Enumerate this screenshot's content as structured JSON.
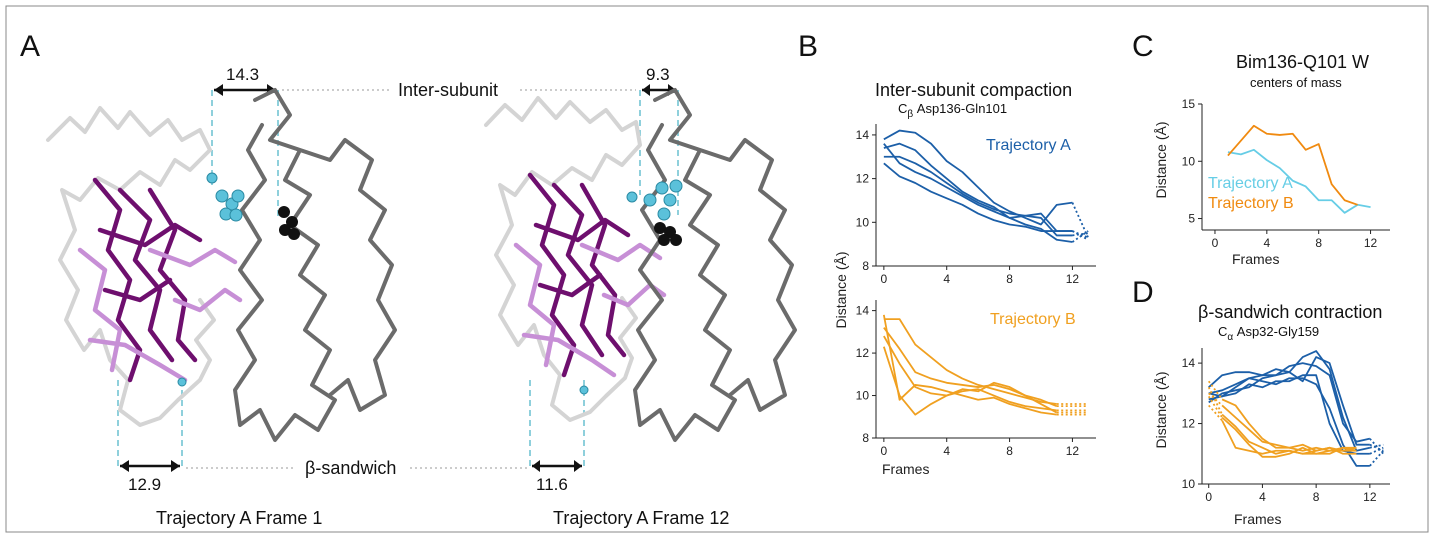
{
  "panels": {
    "a": {
      "letter": "A",
      "inter_label": "Inter-subunit",
      "sandwich_label": "β-sandwich",
      "frame1_caption": "Trajectory A Frame 1",
      "frame12_caption": "Trajectory A Frame 12",
      "frame1_inter": "14.3",
      "frame12_inter": "9.3",
      "frame1_sandwich": "12.9",
      "frame12_sandwich": "11.6",
      "colors": {
        "dark_purple": "#6e0f6e",
        "light_purple": "#c78fd6",
        "grey": "#6b6b6b",
        "light_grey": "#d4d4d4",
        "cyan": "#5bc1da",
        "guide": "#8fd0dc"
      }
    },
    "b": {
      "letter": "B",
      "title": "Inter-subunit compaction",
      "subtitle_main": "C",
      "subtitle_sub": "β",
      "subtitle_rest": " Asp136-Gln101",
      "ylabel": "Distance (Å)",
      "xlabel": "Frames"
    },
    "c": {
      "letter": "C",
      "title": "Bim136-Q101 W",
      "subtitle": "centers of mass",
      "ylabel": "Distance (Å)",
      "xlabel": "Frames"
    },
    "d": {
      "letter": "D",
      "title": "β-sandwich contraction",
      "subtitle_main": "C",
      "subtitle_sub": "α",
      "subtitle_rest": " Asp32-Gly159",
      "ylabel": "Distance (Å)",
      "xlabel": "Frames"
    }
  },
  "chart_data": [
    {
      "id": "B-top",
      "type": "line",
      "xlim": [
        -0.5,
        13.5
      ],
      "ylim": [
        8,
        14.5
      ],
      "xticks": [
        0,
        4,
        8,
        12
      ],
      "yticks": [
        8,
        10,
        12,
        14
      ],
      "color": "#1c5fa8",
      "legend": "Trajectory A",
      "series": [
        {
          "x": [
            0,
            1,
            2,
            3,
            4,
            5,
            6,
            7,
            8,
            9,
            10,
            11,
            12,
            13
          ],
          "y": [
            13.8,
            14.2,
            14.1,
            13.6,
            12.8,
            12.3,
            11.6,
            10.9,
            10.5,
            10.2,
            9.9,
            10.8,
            10.9,
            9.3
          ],
          "dotted_from": 12
        },
        {
          "x": [
            0,
            1,
            2,
            3,
            4,
            5,
            6,
            7,
            8,
            9,
            10,
            11,
            12,
            13
          ],
          "y": [
            13.4,
            13.6,
            13.3,
            12.6,
            12.0,
            11.4,
            11.0,
            10.7,
            10.2,
            10.3,
            10.4,
            9.6,
            9.6,
            9.2
          ],
          "dotted_from": 12
        },
        {
          "x": [
            0,
            1,
            2,
            3,
            4,
            5,
            6,
            7,
            8,
            9,
            10,
            11,
            12,
            13
          ],
          "y": [
            13.0,
            13.0,
            12.7,
            12.3,
            11.8,
            11.3,
            10.9,
            10.6,
            10.4,
            10.3,
            10.2,
            9.4,
            9.4,
            9.5
          ],
          "dotted_from": 12
        },
        {
          "x": [
            0,
            1,
            2,
            3,
            4,
            5,
            6,
            7,
            8,
            9,
            10,
            11,
            12,
            13
          ],
          "y": [
            12.7,
            12.1,
            11.8,
            11.4,
            11.1,
            10.8,
            10.4,
            10.1,
            9.9,
            9.8,
            9.6,
            9.6,
            9.6,
            9.3
          ],
          "dotted_from": 12
        },
        {
          "x": [
            0,
            1,
            2,
            3,
            4,
            5,
            6,
            7,
            8,
            9,
            10,
            11,
            12,
            13
          ],
          "y": [
            13.6,
            12.7,
            12.3,
            12.0,
            11.6,
            11.2,
            10.8,
            10.5,
            10.2,
            9.9,
            9.7,
            9.2,
            9.1,
            9.6
          ],
          "dotted_from": 12
        }
      ]
    },
    {
      "id": "B-bottom",
      "type": "line",
      "xlim": [
        -0.5,
        13.5
      ],
      "ylim": [
        8,
        14.5
      ],
      "xticks": [
        0,
        4,
        8,
        12
      ],
      "yticks": [
        8,
        10,
        12,
        14
      ],
      "color": "#f0a020",
      "legend": "Trajectory B",
      "series": [
        {
          "x": [
            0,
            1,
            2,
            3,
            4,
            5,
            6,
            7,
            8,
            9,
            10,
            11,
            12,
            13
          ],
          "y": [
            13.6,
            13.6,
            12.4,
            11.8,
            11.2,
            10.8,
            10.5,
            10.3,
            10.1,
            9.9,
            9.7,
            9.6,
            9.6,
            9.6
          ],
          "dotted_from": 11
        },
        {
          "x": [
            0,
            1,
            2,
            3,
            4,
            5,
            6,
            7,
            8,
            9,
            10,
            11,
            12,
            13
          ],
          "y": [
            13.2,
            12.2,
            11.1,
            10.8,
            10.6,
            10.5,
            10.4,
            10.5,
            10.3,
            10.0,
            9.8,
            9.5,
            9.5,
            9.5
          ],
          "dotted_from": 11
        },
        {
          "x": [
            0,
            1,
            2,
            3,
            4,
            5,
            6,
            7,
            8,
            9,
            10,
            11,
            12,
            13
          ],
          "y": [
            12.8,
            11.5,
            10.4,
            10.1,
            10.0,
            10.2,
            10.3,
            10.0,
            9.7,
            9.5,
            9.4,
            9.3,
            9.3,
            9.3
          ],
          "dotted_from": 11
        },
        {
          "x": [
            0,
            1,
            2,
            3,
            4,
            5,
            6,
            7,
            8,
            9,
            10,
            11,
            12,
            13
          ],
          "y": [
            12.3,
            10.0,
            9.1,
            9.6,
            10.0,
            10.3,
            10.2,
            10.6,
            10.4,
            10.0,
            9.6,
            9.2,
            9.2,
            9.2
          ],
          "dotted_from": 11
        },
        {
          "x": [
            0,
            1,
            2,
            3,
            4,
            5,
            6,
            7,
            8,
            9,
            10,
            11,
            12,
            13
          ],
          "y": [
            13.8,
            9.8,
            10.5,
            10.4,
            10.2,
            10.0,
            9.8,
            9.9,
            9.6,
            9.4,
            9.2,
            9.1,
            9.1,
            9.1
          ],
          "dotted_from": 11
        }
      ]
    },
    {
      "id": "C",
      "type": "line",
      "xlim": [
        -1,
        13.5
      ],
      "ylim": [
        4,
        15
      ],
      "xticks": [
        0,
        4,
        8,
        12
      ],
      "yticks": [
        5,
        10,
        15
      ],
      "series": [
        {
          "name": "Trajectory A",
          "color": "#66cde6",
          "x": [
            1,
            2,
            3,
            4,
            5,
            6,
            7,
            8,
            9,
            10,
            11,
            12
          ],
          "y": [
            10.8,
            10.6,
            11.0,
            10.1,
            9.4,
            8.3,
            7.8,
            6.6,
            6.6,
            5.5,
            6.2,
            6.0
          ]
        },
        {
          "name": "Trajectory B",
          "color": "#f08a10",
          "x": [
            1,
            2,
            3,
            4,
            5,
            6,
            7,
            8,
            9,
            10,
            11
          ],
          "y": [
            10.5,
            11.8,
            13.1,
            12.4,
            12.3,
            12.4,
            11.0,
            11.5,
            8.0,
            6.6,
            6.2
          ]
        }
      ]
    },
    {
      "id": "D",
      "type": "line",
      "xlim": [
        -0.5,
        13.5
      ],
      "ylim": [
        10,
        14.5
      ],
      "xticks": [
        0,
        4,
        8,
        12
      ],
      "yticks": [
        10,
        12,
        14
      ],
      "series": [
        {
          "color": "#1c5fa8",
          "dotted_from": 12,
          "x": [
            0,
            1,
            2,
            3,
            4,
            5,
            6,
            7,
            8,
            9,
            10,
            11,
            12,
            13
          ],
          "y": [
            13.0,
            12.9,
            13.2,
            13.5,
            13.6,
            13.6,
            13.9,
            14.0,
            13.9,
            13.6,
            12.0,
            11.4,
            11.5,
            11.0
          ]
        },
        {
          "color": "#1c5fa8",
          "dotted_from": 12,
          "x": [
            0,
            1,
            2,
            3,
            4,
            5,
            6,
            7,
            8,
            9,
            10,
            11,
            12,
            13
          ],
          "y": [
            12.7,
            13.0,
            13.1,
            13.2,
            13.5,
            13.6,
            13.7,
            13.4,
            14.2,
            14.0,
            12.6,
            11.3,
            11.3,
            11.1
          ]
        },
        {
          "color": "#1c5fa8",
          "dotted_from": 12,
          "x": [
            0,
            1,
            2,
            3,
            4,
            5,
            6,
            7,
            8,
            9,
            10,
            11,
            12,
            13
          ],
          "y": [
            13.2,
            13.6,
            13.7,
            13.7,
            13.6,
            13.8,
            13.7,
            14.2,
            14.4,
            13.8,
            12.2,
            11.1,
            11.2,
            11.3
          ]
        },
        {
          "color": "#1c5fa8",
          "dotted_from": 12,
          "x": [
            0,
            1,
            2,
            3,
            4,
            5,
            6,
            7,
            8,
            9,
            10,
            11,
            12,
            13
          ],
          "y": [
            12.8,
            12.9,
            13.0,
            13.3,
            13.2,
            13.4,
            13.4,
            13.6,
            13.6,
            12.0,
            11.1,
            11.0,
            11.0,
            11.2
          ]
        },
        {
          "color": "#1c5fa8",
          "dotted_from": 12,
          "x": [
            0,
            1,
            2,
            3,
            4,
            5,
            6,
            7,
            8,
            9,
            10,
            11,
            12,
            13
          ],
          "y": [
            13.0,
            13.1,
            13.3,
            13.5,
            13.4,
            13.3,
            13.5,
            13.5,
            13.3,
            12.5,
            11.3,
            10.6,
            10.6,
            11.1
          ]
        },
        {
          "color": "#f0a020",
          "dotted_from": 0,
          "x": [
            0,
            1,
            2,
            3,
            4,
            5,
            6,
            7,
            8,
            9,
            10,
            11
          ],
          "y": [
            13.4,
            12.8,
            12.6,
            12.0,
            11.5,
            11.2,
            11.2,
            11.3,
            11.1,
            11.2,
            11.1,
            11.1
          ]
        },
        {
          "color": "#f0a020",
          "dotted_from": 0,
          "x": [
            0,
            1,
            2,
            3,
            4,
            5,
            6,
            7,
            8,
            9,
            10,
            11
          ],
          "y": [
            13.0,
            12.6,
            12.2,
            11.8,
            11.4,
            11.3,
            11.2,
            11.1,
            11.2,
            11.1,
            11.2,
            11.1
          ]
        },
        {
          "color": "#f0a020",
          "dotted_from": 0,
          "x": [
            0,
            1,
            2,
            3,
            4,
            5,
            6,
            7,
            8,
            9,
            10,
            11
          ],
          "y": [
            13.2,
            12.3,
            11.9,
            11.4,
            11.2,
            11.0,
            11.1,
            11.0,
            11.0,
            11.1,
            11.1,
            11.2
          ]
        },
        {
          "color": "#f0a020",
          "dotted_from": 0,
          "x": [
            0,
            1,
            2,
            3,
            4,
            5,
            6,
            7,
            8,
            9,
            10,
            11
          ],
          "y": [
            12.9,
            12.2,
            11.8,
            11.3,
            10.9,
            10.9,
            11.0,
            11.2,
            11.0,
            11.0,
            11.2,
            11.2
          ]
        },
        {
          "color": "#f0a020",
          "dotted_from": 0,
          "x": [
            0,
            1,
            2,
            3,
            4,
            5,
            6,
            7,
            8,
            9,
            10,
            11
          ],
          "y": [
            12.6,
            12.1,
            11.2,
            11.1,
            11.0,
            11.1,
            11.1,
            11.0,
            11.1,
            11.2,
            11.0,
            11.0
          ]
        }
      ]
    }
  ]
}
